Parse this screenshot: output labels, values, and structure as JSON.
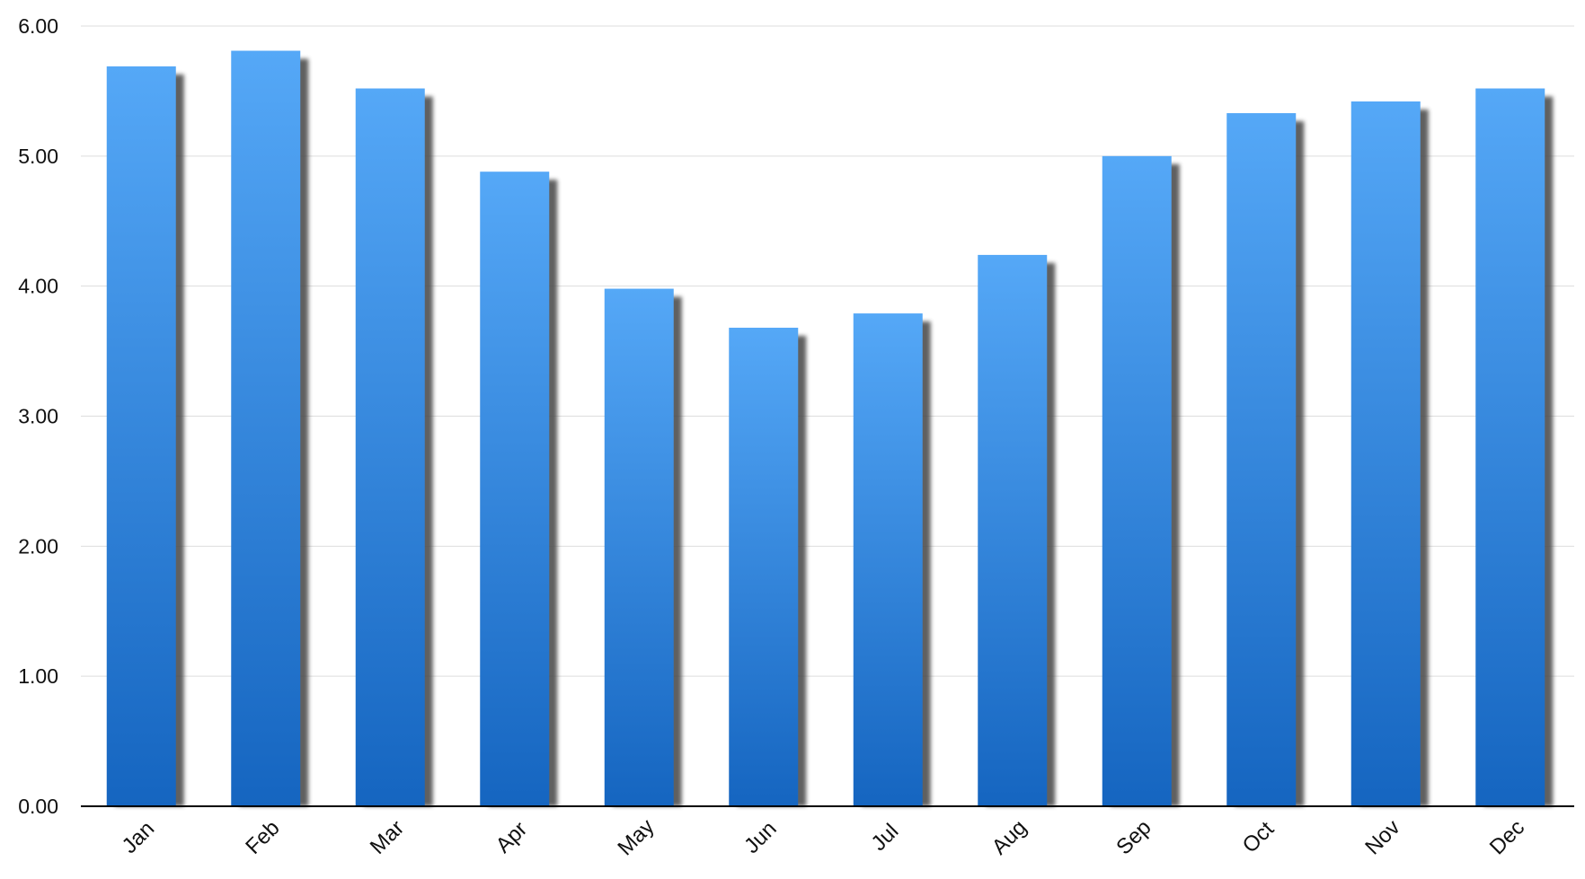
{
  "chart_data": {
    "type": "bar",
    "title": "",
    "xlabel": "",
    "ylabel": "",
    "categories": [
      "Jan",
      "Feb",
      "Mar",
      "Apr",
      "May",
      "Jun",
      "Jul",
      "Aug",
      "Sep",
      "Oct",
      "Nov",
      "Dec"
    ],
    "values": [
      5.69,
      5.81,
      5.52,
      4.88,
      3.98,
      3.68,
      3.79,
      4.24,
      5.0,
      5.33,
      5.42,
      5.52
    ],
    "ylim": [
      0,
      6
    ],
    "yticks": [
      "0.00",
      "1.00",
      "2.00",
      "3.00",
      "4.00",
      "5.00",
      "6.00"
    ],
    "grid": true,
    "legend": "none",
    "bar_color_top": "#55A8F7",
    "bar_color_bottom": "#1565C0",
    "shadow_color": "#444444",
    "grid_color": "#DDDDDD",
    "axis_color": "#000000"
  }
}
